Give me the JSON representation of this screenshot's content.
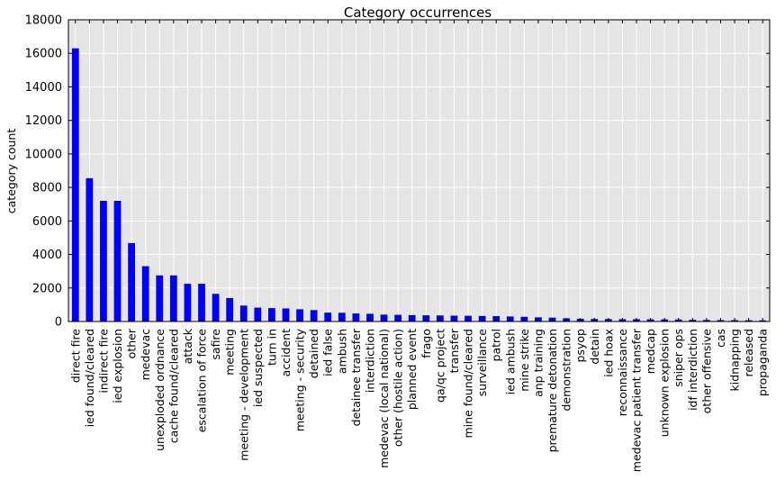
{
  "chart_data": {
    "type": "bar",
    "title": "Category occurrences",
    "xlabel": "",
    "ylabel": "category count",
    "ylim": [
      0,
      18000
    ],
    "yticks": [
      0,
      2000,
      4000,
      6000,
      8000,
      10000,
      12000,
      14000,
      16000,
      18000
    ],
    "grid": true,
    "bar_color": "#0000ff",
    "background_color": "#e5e5e5",
    "grid_color": "#ffffff",
    "categories": [
      "direct fire",
      "ied found/cleared",
      "indirect fire",
      "ied explosion",
      "other",
      "medevac",
      "unexploded ordnance",
      "cache found/cleared",
      "attack",
      "escalation of force",
      "safire",
      "meeting",
      "meeting - development",
      "ied suspected",
      "turn in",
      "accident",
      "meeting - security",
      "detained",
      "ied false",
      "ambush",
      "detainee transfer",
      "interdiction",
      "medevac (local national)",
      "other (hostile action)",
      "planned event",
      "frago",
      "qa/qc project",
      "transfer",
      "mine found/cleared",
      "surveillance",
      "patrol",
      "ied ambush",
      "mine strike",
      "anp training",
      "premature detonation",
      "demonstration",
      "psyop",
      "detain",
      "ied hoax",
      "reconnaissance",
      "medevac patient transfer",
      "medcap",
      "unknown explosion",
      "sniper ops",
      "idf interdiction",
      "other offensive",
      "cas",
      "kidnapping",
      "released",
      "propaganda"
    ],
    "values": [
      16300,
      8550,
      7200,
      7200,
      4680,
      3300,
      2750,
      2750,
      2250,
      2250,
      1650,
      1400,
      950,
      830,
      800,
      780,
      730,
      680,
      530,
      520,
      480,
      460,
      410,
      400,
      380,
      370,
      360,
      350,
      340,
      330,
      320,
      300,
      280,
      250,
      230,
      190,
      160,
      150,
      145,
      140,
      135,
      130,
      125,
      120,
      100,
      90,
      85,
      80,
      75,
      70
    ]
  }
}
